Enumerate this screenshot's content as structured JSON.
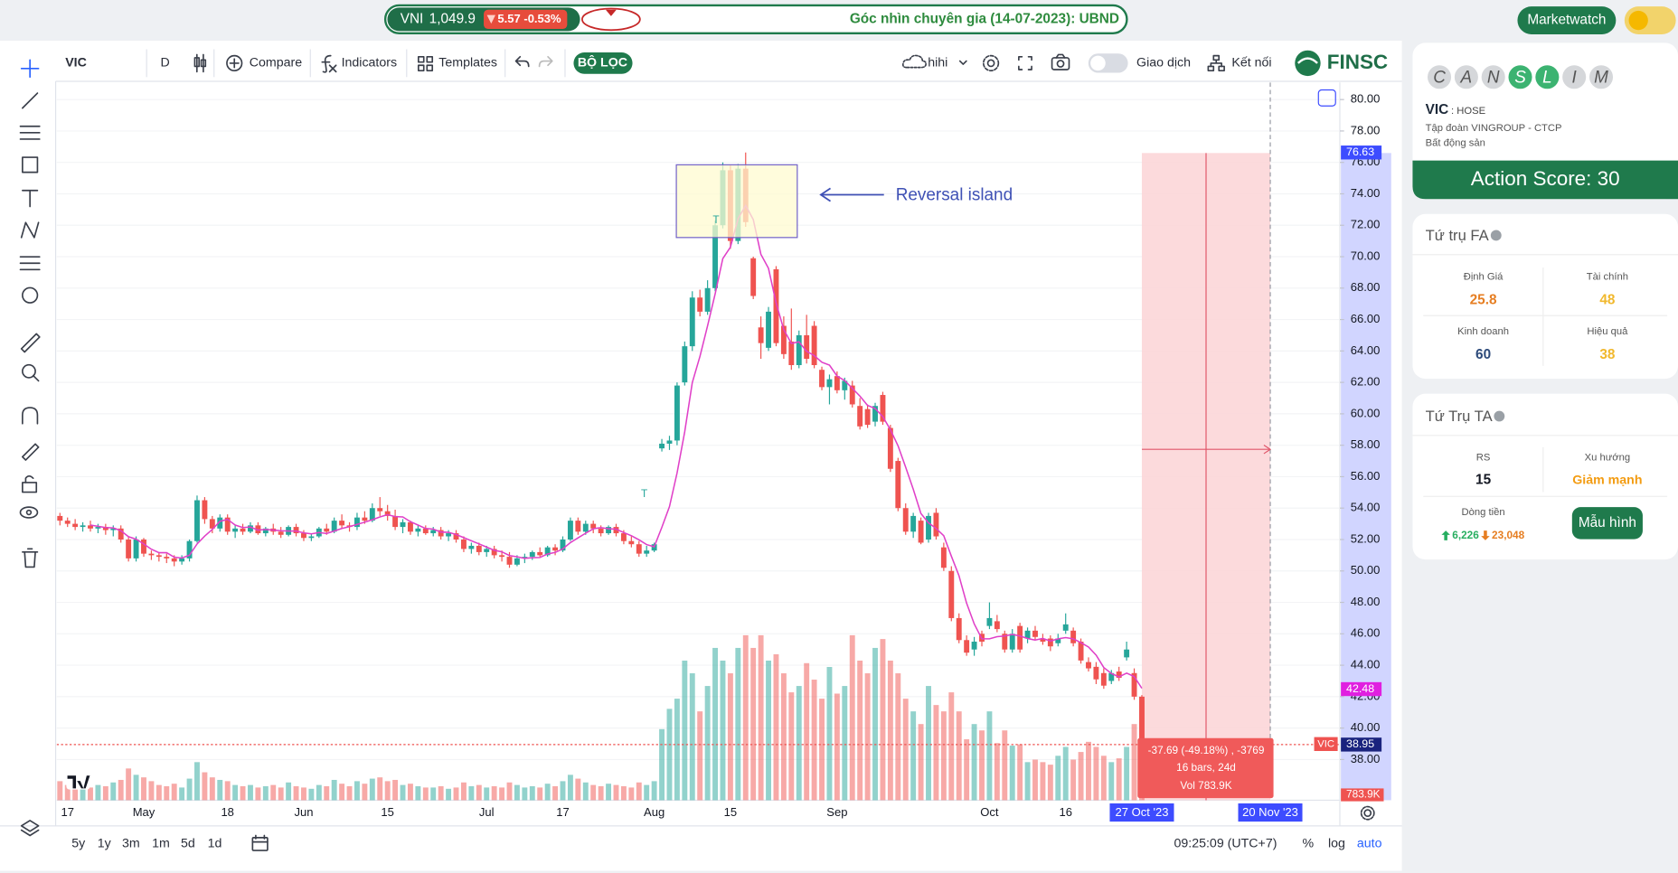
{
  "top_bar": {
    "index_name": "VNI",
    "index_value": "1,049.9",
    "index_change": "5.57 -0.53%",
    "ticker": "Góc nhìn chuyên gia (14-07-2023): UBND",
    "marketwatch": "Marketwatch"
  },
  "toolbar": {
    "symbol": "VIC",
    "interval": "D",
    "compare": "Compare",
    "indicators": "Indicators",
    "templates": "Templates",
    "filter": "BỘ LỌC",
    "layout": "hihi",
    "trade": "Giao dịch",
    "connect": "Kết nối",
    "brand": "FINSC"
  },
  "chart_data": {
    "type": "candlestick",
    "up_color": "#26a69a",
    "down_color": "#ef5350",
    "categories": [
      null,
      "17",
      null,
      null,
      null,
      null,
      null,
      null,
      null,
      null,
      null,
      "May",
      null,
      null,
      null,
      null,
      null,
      null,
      null,
      null,
      null,
      null,
      "18",
      null,
      null,
      null,
      null,
      null,
      null,
      null,
      null,
      null,
      "Jun",
      null,
      null,
      null,
      null,
      null,
      null,
      null,
      null,
      null,
      null,
      "15",
      null,
      null,
      null,
      null,
      null,
      null,
      null,
      null,
      null,
      null,
      null,
      null,
      "Jul",
      null,
      null,
      null,
      null,
      null,
      null,
      null,
      null,
      null,
      "17",
      null,
      null,
      null,
      null,
      null,
      null,
      null,
      null,
      null,
      null,
      null,
      "Aug",
      null,
      null,
      null,
      null,
      null,
      null,
      null,
      null,
      null,
      "15",
      null,
      null,
      null,
      null,
      null,
      null,
      null,
      null,
      null,
      null,
      null,
      null,
      null,
      "Sep",
      null,
      null,
      null,
      null,
      null,
      null,
      null,
      null,
      null,
      null,
      null,
      null,
      null,
      null,
      null,
      null,
      null,
      null,
      null,
      "Oct",
      null,
      null,
      null,
      null,
      null,
      null,
      null,
      null,
      null,
      "16",
      null,
      null,
      null,
      null,
      null,
      null,
      null,
      null,
      null,
      "27 Oct '23"
    ],
    "candles": [
      [
        53.5,
        53.7,
        52.9,
        53.2,
        150
      ],
      [
        53.2,
        53.4,
        52.8,
        53.0,
        120
      ],
      [
        53.0,
        53.3,
        52.6,
        52.8,
        110
      ],
      [
        52.8,
        53.1,
        52.5,
        52.9,
        130
      ],
      [
        52.9,
        53.2,
        52.5,
        52.7,
        100
      ],
      [
        52.7,
        53.0,
        52.4,
        52.8,
        120
      ],
      [
        52.8,
        53.0,
        52.3,
        52.6,
        110
      ],
      [
        52.6,
        52.9,
        52.2,
        52.7,
        140
      ],
      [
        52.7,
        52.9,
        51.8,
        52.0,
        160
      ],
      [
        52.0,
        52.2,
        50.6,
        50.8,
        250
      ],
      [
        50.8,
        52.2,
        50.6,
        52.0,
        200
      ],
      [
        52.0,
        52.1,
        50.9,
        51.1,
        180
      ],
      [
        51.1,
        51.3,
        50.7,
        51.0,
        150
      ],
      [
        51.0,
        51.2,
        50.6,
        50.9,
        120
      ],
      [
        50.9,
        51.1,
        50.5,
        50.8,
        110
      ],
      [
        50.8,
        51.0,
        50.3,
        50.6,
        130
      ],
      [
        50.6,
        51.0,
        50.4,
        50.8,
        100
      ],
      [
        50.8,
        52.0,
        50.6,
        51.9,
        170
      ],
      [
        51.9,
        54.8,
        51.8,
        54.5,
        300
      ],
      [
        54.5,
        54.7,
        53.0,
        53.3,
        220
      ],
      [
        53.3,
        53.5,
        52.4,
        52.7,
        180
      ],
      [
        52.7,
        53.6,
        52.5,
        53.4,
        160
      ],
      [
        53.4,
        53.6,
        52.3,
        52.5,
        150
      ],
      [
        52.5,
        52.9,
        52.1,
        52.7,
        120
      ],
      [
        52.7,
        53.0,
        52.3,
        52.5,
        110
      ],
      [
        52.5,
        53.1,
        52.4,
        52.9,
        120
      ],
      [
        52.9,
        53.1,
        52.3,
        52.4,
        100
      ],
      [
        52.4,
        52.8,
        52.2,
        52.7,
        110
      ],
      [
        52.7,
        53.0,
        52.3,
        52.5,
        120
      ],
      [
        52.5,
        52.8,
        52.1,
        52.3,
        100
      ],
      [
        52.3,
        52.9,
        52.2,
        52.8,
        140
      ],
      [
        52.8,
        53.0,
        52.2,
        52.4,
        110
      ],
      [
        52.4,
        52.6,
        51.9,
        52.1,
        100
      ],
      [
        52.1,
        52.4,
        51.9,
        52.2,
        90
      ],
      [
        52.2,
        52.8,
        52.1,
        52.7,
        120
      ],
      [
        52.7,
        53.0,
        52.3,
        52.5,
        110
      ],
      [
        52.5,
        53.4,
        52.4,
        53.2,
        160
      ],
      [
        53.2,
        53.6,
        52.7,
        52.9,
        130
      ],
      [
        52.9,
        53.1,
        52.5,
        52.8,
        110
      ],
      [
        52.8,
        53.7,
        52.6,
        53.4,
        150
      ],
      [
        53.4,
        53.8,
        53.0,
        53.2,
        130
      ],
      [
        53.2,
        54.3,
        53.1,
        54.0,
        170
      ],
      [
        54.0,
        54.7,
        53.5,
        53.8,
        180
      ],
      [
        53.8,
        54.2,
        53.2,
        53.5,
        150
      ],
      [
        53.5,
        53.9,
        52.6,
        52.8,
        160
      ],
      [
        52.8,
        53.3,
        52.4,
        53.1,
        120
      ],
      [
        53.1,
        53.2,
        52.3,
        52.5,
        130
      ],
      [
        52.5,
        52.9,
        52.2,
        52.7,
        110
      ],
      [
        52.7,
        52.9,
        52.3,
        52.4,
        100
      ],
      [
        52.4,
        52.8,
        52.2,
        52.6,
        100
      ],
      [
        52.6,
        52.8,
        52.0,
        52.2,
        110
      ],
      [
        52.2,
        52.6,
        51.9,
        52.4,
        90
      ],
      [
        52.4,
        52.6,
        51.8,
        52.0,
        100
      ],
      [
        52.0,
        52.2,
        51.2,
        51.4,
        140
      ],
      [
        51.4,
        51.8,
        51.1,
        51.6,
        110
      ],
      [
        51.6,
        51.8,
        51.0,
        51.2,
        120
      ],
      [
        51.2,
        51.6,
        50.9,
        51.4,
        100
      ],
      [
        51.4,
        51.6,
        50.8,
        51.0,
        110
      ],
      [
        51.0,
        51.3,
        50.6,
        50.9,
        100
      ],
      [
        50.9,
        51.2,
        50.2,
        50.4,
        140
      ],
      [
        50.4,
        51.0,
        50.3,
        50.8,
        120
      ],
      [
        50.8,
        51.1,
        50.5,
        50.9,
        100
      ],
      [
        50.9,
        51.3,
        50.7,
        51.2,
        110
      ],
      [
        51.2,
        51.5,
        50.9,
        51.0,
        100
      ],
      [
        51.0,
        51.6,
        50.9,
        51.5,
        130
      ],
      [
        51.5,
        51.7,
        51.0,
        51.3,
        110
      ],
      [
        51.3,
        52.2,
        51.2,
        52.0,
        150
      ],
      [
        52.0,
        53.4,
        51.9,
        53.2,
        200
      ],
      [
        53.2,
        53.4,
        52.3,
        52.5,
        170
      ],
      [
        52.5,
        53.2,
        52.3,
        53.0,
        140
      ],
      [
        53.0,
        53.2,
        52.4,
        52.7,
        120
      ],
      [
        52.7,
        52.9,
        52.2,
        52.4,
        110
      ],
      [
        52.4,
        52.9,
        52.3,
        52.8,
        130
      ],
      [
        52.8,
        53.0,
        52.2,
        52.4,
        120
      ],
      [
        52.4,
        52.6,
        51.7,
        51.9,
        110
      ],
      [
        51.9,
        52.2,
        51.5,
        51.7,
        100
      ],
      [
        51.7,
        51.9,
        50.9,
        51.1,
        140
      ],
      [
        51.1,
        51.6,
        50.9,
        51.3,
        120
      ],
      [
        51.3,
        51.8,
        51.2,
        51.7,
        150
      ],
      [
        57.8,
        58.4,
        57.6,
        58.1,
        560
      ],
      [
        58.1,
        58.6,
        57.7,
        58.3,
        720
      ],
      [
        58.3,
        62.0,
        58.0,
        61.8,
        800
      ],
      [
        62.0,
        64.6,
        61.8,
        64.3,
        1100
      ],
      [
        64.3,
        67.8,
        64.0,
        67.4,
        1000
      ],
      [
        67.4,
        67.9,
        66.2,
        66.5,
        700
      ],
      [
        66.5,
        68.5,
        66.3,
        68.0,
        900
      ],
      [
        68.0,
        72.3,
        67.8,
        72.0,
        1200
      ],
      [
        72.0,
        76.0,
        71.8,
        75.5,
        1100
      ],
      [
        75.5,
        75.8,
        70.5,
        71.0,
        1000
      ],
      [
        71.0,
        75.9,
        70.8,
        75.6,
        1200
      ],
      [
        75.6,
        76.63,
        71.9,
        72.2,
        1300
      ],
      [
        69.9,
        70.0,
        67.3,
        67.5,
        1200
      ],
      [
        65.5,
        66.2,
        63.5,
        64.5,
        1300
      ],
      [
        64.2,
        66.8,
        64.0,
        66.5,
        1100
      ],
      [
        69.2,
        69.4,
        64.3,
        64.5,
        1150
      ],
      [
        65.6,
        66.2,
        63.5,
        63.8,
        1000
      ],
      [
        64.6,
        66.7,
        62.8,
        63.1,
        850
      ],
      [
        63.1,
        65.3,
        62.9,
        65.0,
        900
      ],
      [
        65.0,
        66.3,
        63.2,
        63.5,
        1080
      ],
      [
        65.6,
        65.9,
        62.9,
        63.1,
        950
      ],
      [
        62.8,
        63.0,
        61.5,
        61.7,
        800
      ],
      [
        61.7,
        62.5,
        60.6,
        62.2,
        1050
      ],
      [
        62.4,
        62.7,
        61.3,
        61.5,
        840
      ],
      [
        61.5,
        62.3,
        60.9,
        62.1,
        900
      ],
      [
        61.8,
        62.1,
        60.4,
        60.6,
        1300
      ],
      [
        60.5,
        61.0,
        59.0,
        59.2,
        1100
      ],
      [
        60.3,
        60.6,
        59.1,
        59.3,
        1000
      ],
      [
        59.5,
        60.7,
        59.2,
        60.5,
        1200
      ],
      [
        61.2,
        61.4,
        59.3,
        59.5,
        1270
      ],
      [
        59.1,
        59.3,
        56.3,
        56.5,
        1100
      ],
      [
        57.0,
        57.2,
        53.8,
        54.0,
        1000
      ],
      [
        54.0,
        54.3,
        52.3,
        52.5,
        800
      ],
      [
        52.5,
        53.7,
        52.1,
        53.5,
        700
      ],
      [
        53.2,
        53.4,
        51.7,
        51.8,
        600
      ],
      [
        52.0,
        53.7,
        51.8,
        53.5,
        900
      ],
      [
        53.7,
        54.0,
        52.0,
        52.2,
        750
      ],
      [
        51.5,
        51.8,
        50.0,
        50.2,
        700
      ],
      [
        50.0,
        50.3,
        46.8,
        47.0,
        850
      ],
      [
        47.0,
        47.3,
        45.4,
        45.6,
        700
      ],
      [
        45.6,
        45.9,
        44.6,
        44.8,
        480
      ],
      [
        45.0,
        45.8,
        44.6,
        45.5,
        600
      ],
      [
        46.0,
        46.2,
        45.2,
        45.5,
        550
      ],
      [
        46.5,
        48.0,
        46.3,
        47.0,
        700
      ],
      [
        46.8,
        47.2,
        46.1,
        46.3,
        450
      ],
      [
        46.0,
        46.2,
        44.8,
        45.0,
        550
      ],
      [
        45.0,
        46.3,
        44.8,
        46.0,
        430
      ],
      [
        46.5,
        46.7,
        44.8,
        45.0,
        440
      ],
      [
        45.7,
        46.4,
        45.4,
        46.2,
        300
      ],
      [
        46.2,
        46.5,
        45.6,
        45.8,
        320
      ],
      [
        45.7,
        46.0,
        45.3,
        45.5,
        300
      ],
      [
        45.7,
        45.9,
        44.9,
        45.2,
        280
      ],
      [
        45.4,
        46.0,
        45.2,
        45.7,
        350
      ],
      [
        46.2,
        47.3,
        46.0,
        46.6,
        420
      ],
      [
        46.2,
        46.4,
        45.2,
        45.4,
        320
      ],
      [
        45.5,
        45.7,
        44.1,
        44.3,
        380
      ],
      [
        44.2,
        44.5,
        43.6,
        43.8,
        460
      ],
      [
        43.9,
        44.2,
        42.8,
        43.1,
        420
      ],
      [
        43.5,
        43.8,
        42.5,
        42.7,
        350
      ],
      [
        43.0,
        43.7,
        42.8,
        43.5,
        300
      ],
      [
        43.6,
        43.9,
        43.0,
        43.2,
        330
      ],
      [
        44.5,
        45.5,
        44.3,
        45.0,
        420
      ],
      [
        43.5,
        43.8,
        41.8,
        42.0,
        600
      ],
      [
        42.0,
        42.1,
        38.8,
        38.95,
        783.9
      ]
    ],
    "ylim": [
      35.41,
      81.09
    ],
    "yticks": [
      {
        "value": 38,
        "label": "38.00"
      },
      {
        "value": 40,
        "label": "40.00"
      },
      {
        "value": 42,
        "label": "42.00"
      },
      {
        "value": 44,
        "label": "44.00"
      },
      {
        "value": 46,
        "label": "46.00"
      },
      {
        "value": 48,
        "label": "48.00"
      },
      {
        "value": 50,
        "label": "50.00"
      },
      {
        "value": 52,
        "label": "52.00"
      },
      {
        "value": 54,
        "label": "54.00"
      },
      {
        "value": 56,
        "label": "56.00"
      },
      {
        "value": 58,
        "label": "58.00"
      },
      {
        "value": 60,
        "label": "60.00"
      },
      {
        "value": 62,
        "label": "62.00"
      },
      {
        "value": 64,
        "label": "64.00"
      },
      {
        "value": 66,
        "label": "66.00"
      },
      {
        "value": 68,
        "label": "68.00"
      },
      {
        "value": 70,
        "label": "70.00"
      },
      {
        "value": 72,
        "label": "72.00"
      },
      {
        "value": 74,
        "label": "74.00"
      },
      {
        "value": 76,
        "label": "76.00"
      },
      {
        "value": 78,
        "label": "78.00"
      },
      {
        "value": 80,
        "label": "80.00"
      }
    ],
    "y2lim": [
      0,
      5656
    ],
    "grid": true,
    "price_labels": {
      "high": 76.63,
      "ma": 42.48,
      "last": 38.95
    },
    "symbol_tag": "VIC",
    "volume_label": "783.9K",
    "annotation": "Reversal island",
    "annotation_markers": [
      "T",
      "T"
    ],
    "measure": {
      "lines": [
        "-37.69 (-49.18%) , -3769",
        "16 bars, 24d",
        "Vol 783.9K"
      ],
      "end": "20 Nov '23"
    }
  },
  "bottom_bar": {
    "ranges": [
      "5y",
      "1y",
      "3m",
      "1m",
      "5d",
      "1d"
    ],
    "time": "09:25:09 (UTC+7)",
    "percent": "%",
    "log": "log",
    "auto": "auto"
  },
  "canslim": {
    "letters": [
      "C",
      "A",
      "N",
      "S",
      "L",
      "I",
      "M"
    ],
    "symbol": "VIC",
    "exchange": ": HOSE",
    "company": "Tập đoàn VINGROUP - CTCP",
    "sector": "Bất động sản",
    "action_score": "Action Score: 30"
  },
  "fa": {
    "title": "Tứ trụ FA",
    "items": [
      {
        "label": "Định Giá",
        "value": "25.8"
      },
      {
        "label": "Tài chính",
        "value": "48"
      },
      {
        "label": "Kinh doanh",
        "value": "60"
      },
      {
        "label": "Hiệu quả",
        "value": "38"
      }
    ]
  },
  "ta": {
    "title": "Tứ Trụ TA",
    "rs_label": "RS",
    "rs": "15",
    "trend_label": "Xu hướng",
    "trend": "Giảm mạnh",
    "flow_label": "Dòng tiền",
    "flow_in": "6,226",
    "flow_out": "23,048",
    "pattern": "Mẫu hình"
  }
}
